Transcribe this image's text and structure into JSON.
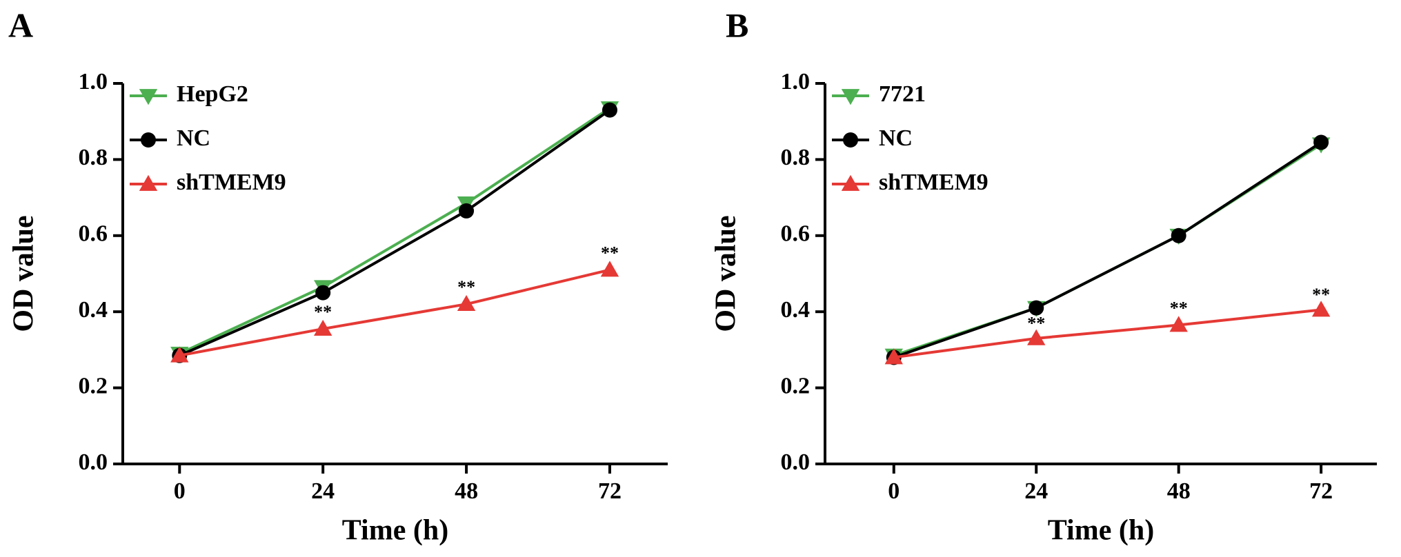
{
  "chart_data": [
    {
      "type": "line",
      "panel_label": "A",
      "x_label": "Time (h)",
      "y_label": "OD value",
      "x": [
        0,
        24,
        48,
        72
      ],
      "xlim": [
        -9.5,
        81.7
      ],
      "xticks": [
        0,
        24,
        48,
        72
      ],
      "ylim": [
        0,
        1
      ],
      "yticks": [
        {
          "value": 0,
          "label": "0.0"
        },
        0.2,
        0.4,
        0.6,
        0.8,
        {
          "value": 1,
          "label": "1.0"
        }
      ],
      "legend": "top-left",
      "series": [
        {
          "name": "HepG2",
          "color": "#4caf50",
          "marker": "triangle-down",
          "values": [
            0.29,
            0.465,
            0.685,
            0.935
          ]
        },
        {
          "name": "NC",
          "color": "#000000",
          "marker": "circle",
          "values": [
            0.285,
            0.45,
            0.665,
            0.93
          ]
        },
        {
          "name": "shTMEM9",
          "color": "#e53935",
          "marker": "triangle-up",
          "values": [
            0.285,
            0.355,
            0.42,
            0.51
          ]
        }
      ],
      "annotations": [
        {
          "text": "**",
          "x": 24,
          "y": 0.395
        },
        {
          "text": "**",
          "x": 48,
          "y": 0.46
        },
        {
          "text": "**",
          "x": 72,
          "y": 0.55
        }
      ]
    },
    {
      "type": "line",
      "panel_label": "B",
      "x_label": "Time (h)",
      "y_label": "OD value",
      "x": [
        0,
        24,
        48,
        72
      ],
      "xlim": [
        -11.6,
        81.4
      ],
      "xticks": [
        0,
        24,
        48,
        72
      ],
      "ylim": [
        0,
        1
      ],
      "yticks": [
        {
          "value": 0,
          "label": "0.0"
        },
        0.2,
        0.4,
        0.6,
        0.8,
        {
          "value": 1,
          "label": "1.0"
        }
      ],
      "legend": "top-left",
      "series": [
        {
          "name": "7721",
          "color": "#4caf50",
          "marker": "triangle-down",
          "values": [
            0.285,
            0.41,
            0.6,
            0.84
          ]
        },
        {
          "name": "NC",
          "color": "#000000",
          "marker": "circle",
          "values": [
            0.28,
            0.41,
            0.6,
            0.845
          ]
        },
        {
          "name": "shTMEM9",
          "color": "#e53935",
          "marker": "triangle-up",
          "values": [
            0.28,
            0.33,
            0.365,
            0.405
          ]
        }
      ],
      "annotations": [
        {
          "text": "**",
          "x": 24,
          "y": 0.365
        },
        {
          "text": "**",
          "x": 48,
          "y": 0.405
        },
        {
          "text": "**",
          "x": 72,
          "y": 0.44
        }
      ]
    }
  ]
}
